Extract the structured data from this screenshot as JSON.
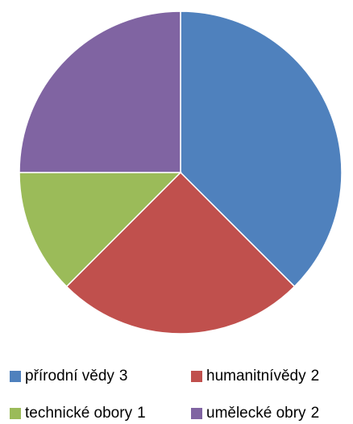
{
  "chart_data": {
    "type": "pie",
    "categories": [
      "přírodní vědy",
      "humanitnívědy",
      "technické obory",
      "umělecké obry"
    ],
    "values": [
      3,
      2,
      1,
      2
    ],
    "colors": [
      "#4f81bd",
      "#c0504d",
      "#9bbb59",
      "#8064a2"
    ],
    "legend": "bottom"
  }
}
